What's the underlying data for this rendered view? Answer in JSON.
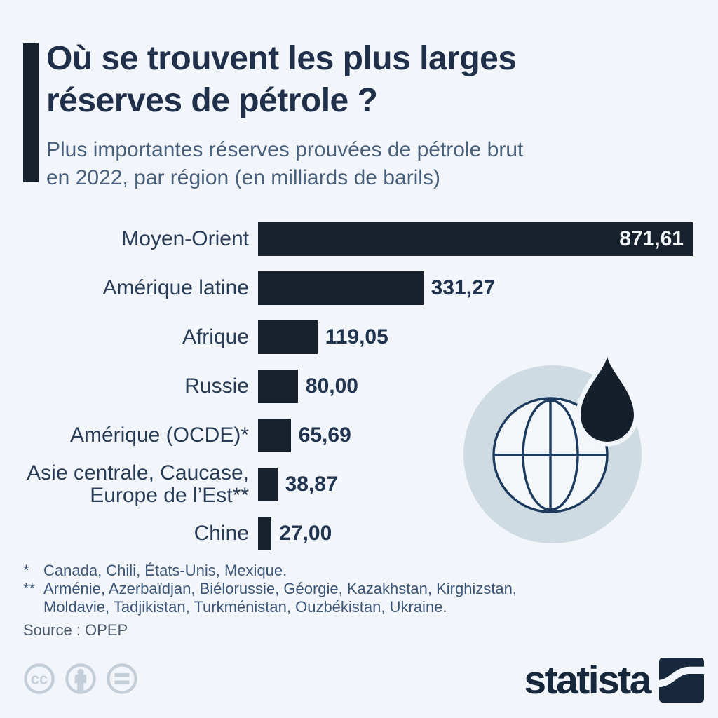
{
  "colors": {
    "background": "#f2f6fa",
    "accent_bar": "#18212e",
    "bar": "#18212e",
    "title": "#20304a",
    "subtitle": "#48607c",
    "label": "#293c56",
    "value": "#20334f",
    "value_inside": "#f5f8fa",
    "footnote": "#3d5677",
    "source": "#4a5a6c",
    "license_icon": "#c4ced9",
    "badge_circle": "#cfdbe2",
    "globe_fill": "#f4f7fa",
    "globe_stroke": "#1d3a5f",
    "droplet": "#151f2c",
    "logo": "#17283c"
  },
  "header": {
    "title_lines": [
      "Où se trouvent les plus larges",
      "réserves de pétrole ?"
    ],
    "subtitle_lines": [
      "Plus importantes réserves prouvées de pétrole brut",
      "en 2022, par région (en milliards de barils)"
    ]
  },
  "chart_data": {
    "type": "bar",
    "orientation": "horizontal",
    "title": "Où se trouvent les plus larges réserves de pétrole ?",
    "subtitle": "Plus importantes réserves prouvées de pétrole brut en 2022, par région (en milliards de barils)",
    "unit": "milliards de barils",
    "year": "2022",
    "xlim": [
      0,
      871.61
    ],
    "grid": false,
    "legend": false,
    "categories": [
      "Moyen-Orient",
      "Amérique latine",
      "Afrique",
      "Russie",
      "Amérique (OCDE)*",
      "Asie centrale, Caucase, Europe de l’Est**",
      "Chine"
    ],
    "category_lines": [
      [
        "Moyen-Orient"
      ],
      [
        "Amérique latine"
      ],
      [
        "Afrique"
      ],
      [
        "Russie"
      ],
      [
        "Amérique (OCDE)*"
      ],
      [
        "Asie centrale, Caucase,",
        "Europe de l’Est**"
      ],
      [
        "Chine"
      ]
    ],
    "values": [
      871.61,
      331.27,
      119.05,
      80.0,
      65.69,
      38.87,
      27.0
    ],
    "value_labels": [
      "871,61",
      "331,27",
      "119,05",
      "80,00",
      "65,69",
      "38,87",
      "27,00"
    ],
    "value_position": [
      "inside",
      "outside",
      "outside",
      "outside",
      "outside",
      "outside",
      "outside"
    ],
    "source": "OPEP"
  },
  "footnotes": [
    {
      "marker": "*",
      "lines": [
        "Canada, Chili, États-Unis, Mexique."
      ]
    },
    {
      "marker": "**",
      "lines": [
        "Arménie, Azerbaïdjan, Biélorussie, Géorgie, Kazakhstan, Kirghizstan,",
        "Moldavie, Tadjikistan, Turkménistan, Ouzbékistan, Ukraine."
      ]
    }
  ],
  "source_label": "Source : OPEP",
  "branding": {
    "logo_text": "statista"
  },
  "license": {
    "icons": [
      "cc",
      "by-person",
      "nd-equals"
    ]
  }
}
